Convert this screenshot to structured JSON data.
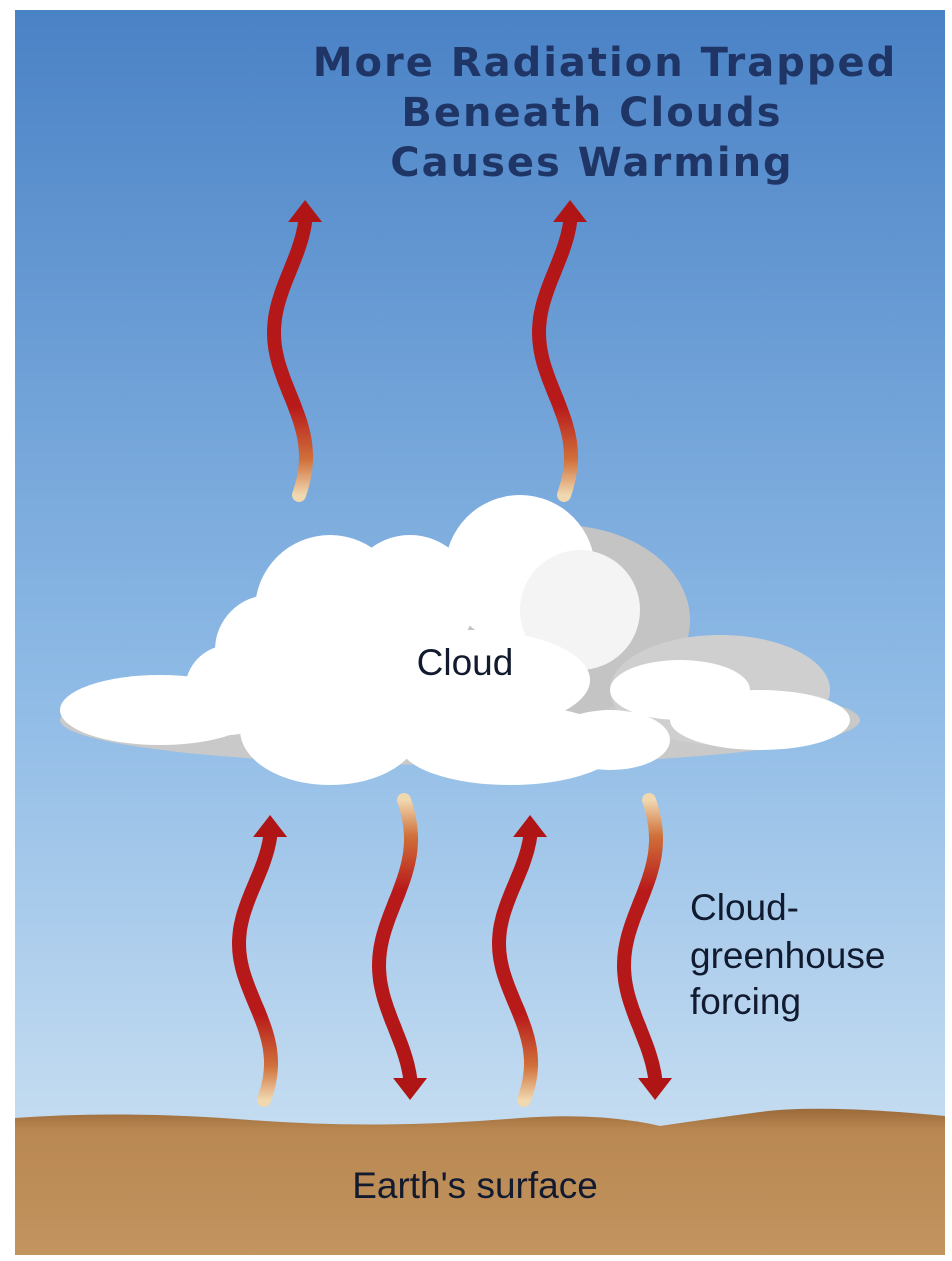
{
  "title": {
    "lines": [
      "More Radiation Trapped",
      "Beneath Clouds",
      "Causes Warming"
    ]
  },
  "labels": {
    "cloud": "Cloud",
    "forcing": [
      "Cloud-",
      "greenhouse",
      "forcing"
    ],
    "surface": "Earth's surface"
  }
}
